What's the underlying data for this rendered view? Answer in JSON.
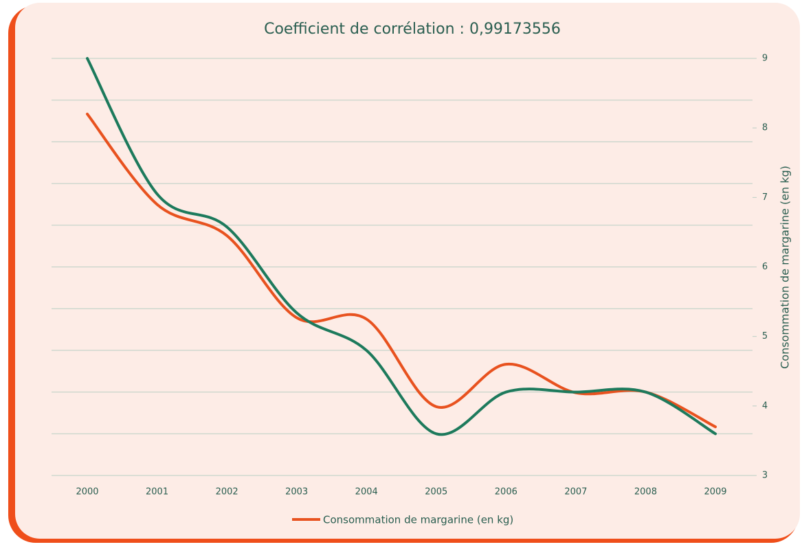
{
  "chart_data": {
    "type": "line",
    "title": "Coefficient de corrélation : 0,99173556",
    "categories": [
      "2000",
      "2001",
      "2002",
      "2003",
      "2004",
      "2005",
      "2006",
      "2007",
      "2008",
      "2009"
    ],
    "series": [
      {
        "color": "#1d7a5c",
        "values": [
          10,
          6.75,
          5.96,
          3.9,
          3.0,
          1.0,
          2.0,
          2.0,
          2.0,
          1.0
        ]
      },
      {
        "name": "Consommation de margarine (en kg)",
        "color": "#e8521f",
        "axis": "y2",
        "values": [
          8.2,
          6.9,
          6.45,
          5.27,
          5.25,
          3.99,
          4.6,
          4.19,
          4.2,
          3.7
        ]
      }
    ],
    "ylim": [
      0,
      10
    ],
    "yticks": [
      0,
      1,
      2,
      3,
      4,
      5,
      6,
      7,
      8,
      9,
      10
    ],
    "ytick_labels": false,
    "y2lim": [
      3,
      9
    ],
    "y2ticks": [
      3,
      4,
      5,
      6,
      7,
      8,
      9
    ],
    "y2label": "Consommation de margarine (en kg)",
    "grid": true,
    "smooth": true,
    "legend": "bottom"
  }
}
